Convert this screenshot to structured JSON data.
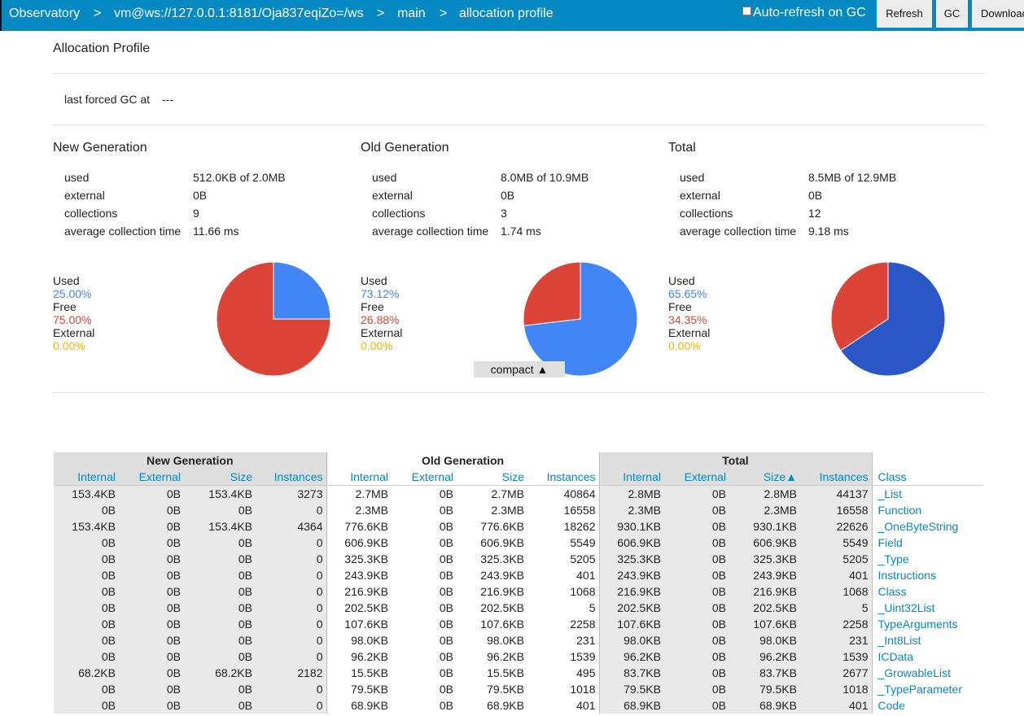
{
  "nav": {
    "crumbs": [
      "Observatory",
      "vm@ws://127.0.0.1:8181/Oja837eqiZo=/ws",
      "main",
      "allocation profile"
    ],
    "separator": ">",
    "auto_refresh_label": "Auto-refresh on GC",
    "refresh_label": "Refresh",
    "gc_label": "GC",
    "download_label": "Download"
  },
  "page": {
    "title": "Allocation Profile",
    "last_gc_label": "last forced GC at",
    "last_gc_value": "---"
  },
  "generations": [
    {
      "title": "New Generation",
      "stats": [
        {
          "label": "used",
          "value": "512.0KB of 2.0MB"
        },
        {
          "label": "external",
          "value": "0B"
        },
        {
          "label": "collections",
          "value": "9"
        },
        {
          "label": "average collection time",
          "value": "11.66 ms"
        }
      ],
      "legend": {
        "used_label": "Used",
        "used_pct": "25.00%",
        "free_label": "Free",
        "free_pct": "75.00%",
        "external_label": "External",
        "external_pct": "0.00%"
      },
      "chart": {
        "used": 25.0,
        "free": 75.0,
        "external": 0.0,
        "used_color": "#4285f4",
        "free_color": "#db4437"
      }
    },
    {
      "title": "Old Generation",
      "stats": [
        {
          "label": "used",
          "value": "8.0MB of 10.9MB"
        },
        {
          "label": "external",
          "value": "0B"
        },
        {
          "label": "collections",
          "value": "3"
        },
        {
          "label": "average collection time",
          "value": "1.74 ms"
        }
      ],
      "legend": {
        "used_label": "Used",
        "used_pct": "73.12%",
        "free_label": "Free",
        "free_pct": "26.88%",
        "external_label": "External",
        "external_pct": "0.00%"
      },
      "chart": {
        "used": 73.12,
        "free": 26.88,
        "external": 0.0,
        "used_color": "#4285f4",
        "free_color": "#db4437"
      }
    },
    {
      "title": "Total",
      "stats": [
        {
          "label": "used",
          "value": "8.5MB of 12.9MB"
        },
        {
          "label": "external",
          "value": "0B"
        },
        {
          "label": "collections",
          "value": "12"
        },
        {
          "label": "average collection time",
          "value": "9.18 ms"
        }
      ],
      "legend": {
        "used_label": "Used",
        "used_pct": "65.65%",
        "free_label": "Free",
        "free_pct": "34.35%",
        "external_label": "External",
        "external_pct": "0.00%"
      },
      "chart": {
        "used": 65.65,
        "free": 34.35,
        "external": 0.0,
        "used_color": "#2a56c6",
        "free_color": "#db4437"
      }
    }
  ],
  "compact_label": "compact ▲",
  "table": {
    "group_headers": [
      "New Generation",
      "Old Generation",
      "Total"
    ],
    "column_headers": [
      "Internal",
      "External",
      "Size",
      "Instances",
      "Internal",
      "External",
      "Size",
      "Instances",
      "Internal",
      "External",
      "Size▲",
      "Instances",
      "Class"
    ],
    "rows": [
      [
        "153.4KB",
        "0B",
        "153.4KB",
        "3273",
        "2.7MB",
        "0B",
        "2.7MB",
        "40864",
        "2.8MB",
        "0B",
        "2.8MB",
        "44137",
        "_List"
      ],
      [
        "0B",
        "0B",
        "0B",
        "0",
        "2.3MB",
        "0B",
        "2.3MB",
        "16558",
        "2.3MB",
        "0B",
        "2.3MB",
        "16558",
        "Function"
      ],
      [
        "153.4KB",
        "0B",
        "153.4KB",
        "4364",
        "776.6KB",
        "0B",
        "776.6KB",
        "18262",
        "930.1KB",
        "0B",
        "930.1KB",
        "22626",
        "_OneByteString"
      ],
      [
        "0B",
        "0B",
        "0B",
        "0",
        "606.9KB",
        "0B",
        "606.9KB",
        "5549",
        "606.9KB",
        "0B",
        "606.9KB",
        "5549",
        "Field"
      ],
      [
        "0B",
        "0B",
        "0B",
        "0",
        "325.3KB",
        "0B",
        "325.3KB",
        "5205",
        "325.3KB",
        "0B",
        "325.3KB",
        "5205",
        "_Type"
      ],
      [
        "0B",
        "0B",
        "0B",
        "0",
        "243.9KB",
        "0B",
        "243.9KB",
        "401",
        "243.9KB",
        "0B",
        "243.9KB",
        "401",
        "Instructions"
      ],
      [
        "0B",
        "0B",
        "0B",
        "0",
        "216.9KB",
        "0B",
        "216.9KB",
        "1068",
        "216.9KB",
        "0B",
        "216.9KB",
        "1068",
        "Class"
      ],
      [
        "0B",
        "0B",
        "0B",
        "0",
        "202.5KB",
        "0B",
        "202.5KB",
        "5",
        "202.5KB",
        "0B",
        "202.5KB",
        "5",
        "_Uint32List"
      ],
      [
        "0B",
        "0B",
        "0B",
        "0",
        "107.6KB",
        "0B",
        "107.6KB",
        "2258",
        "107.6KB",
        "0B",
        "107.6KB",
        "2258",
        "TypeArguments"
      ],
      [
        "0B",
        "0B",
        "0B",
        "0",
        "98.0KB",
        "0B",
        "98.0KB",
        "231",
        "98.0KB",
        "0B",
        "98.0KB",
        "231",
        "_Int8List"
      ],
      [
        "0B",
        "0B",
        "0B",
        "0",
        "96.2KB",
        "0B",
        "96.2KB",
        "1539",
        "96.2KB",
        "0B",
        "96.2KB",
        "1539",
        "ICData"
      ],
      [
        "68.2KB",
        "0B",
        "68.2KB",
        "2182",
        "15.5KB",
        "0B",
        "15.5KB",
        "495",
        "83.7KB",
        "0B",
        "83.7KB",
        "2677",
        "_GrowableList"
      ],
      [
        "0B",
        "0B",
        "0B",
        "0",
        "79.5KB",
        "0B",
        "79.5KB",
        "1018",
        "79.5KB",
        "0B",
        "79.5KB",
        "1018",
        "_TypeParameter"
      ],
      [
        "0B",
        "0B",
        "0B",
        "0",
        "68.9KB",
        "0B",
        "68.9KB",
        "401",
        "68.9KB",
        "0B",
        "68.9KB",
        "401",
        "Code"
      ]
    ]
  }
}
